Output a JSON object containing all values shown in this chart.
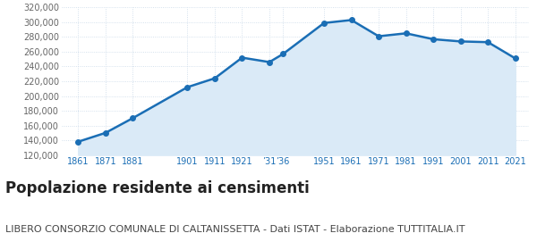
{
  "years": [
    1861,
    1871,
    1881,
    1901,
    1911,
    1921,
    1931,
    1936,
    1951,
    1961,
    1971,
    1981,
    1991,
    2001,
    2011,
    2021
  ],
  "population": [
    138000,
    150000,
    170000,
    212000,
    224000,
    252000,
    246000,
    257000,
    299000,
    303000,
    281000,
    285000,
    277000,
    274000,
    273000,
    251000
  ],
  "line_color": "#1a6eb5",
  "fill_color": "#daeaf7",
  "marker_color": "#1a6eb5",
  "grid_color": "#c8d8e8",
  "background_color": "#ffffff",
  "title": "Popolazione residente ai censimenti",
  "subtitle": "LIBERO CONSORZIO COMUNALE DI CALTANISSETTA - Dati ISTAT - Elaborazione TUTTITALIA.IT",
  "ylim": [
    120000,
    320000
  ],
  "yticks": [
    120000,
    140000,
    160000,
    180000,
    200000,
    220000,
    240000,
    260000,
    280000,
    300000,
    320000
  ],
  "title_fontsize": 12,
  "subtitle_fontsize": 8,
  "tick_color": "#1a6eb5",
  "ytick_color": "#666666"
}
